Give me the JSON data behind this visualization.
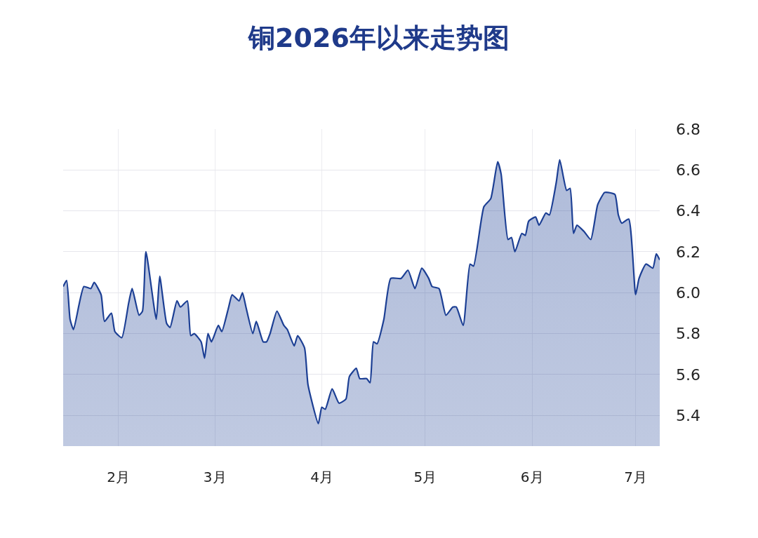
{
  "chart_data": {
    "type": "area",
    "title": "铜2026年以来走势图",
    "color": "#1c3f94",
    "grid": true,
    "xlim": [
      "2026-01-16",
      "2026-07-08"
    ],
    "xticks": [
      {
        "value": "2026-02-01",
        "label": "2月"
      },
      {
        "value": "2026-03-01",
        "label": "3月"
      },
      {
        "value": "2026-04-01",
        "label": "4月"
      },
      {
        "value": "2026-05-01",
        "label": "5月"
      },
      {
        "value": "2026-06-01",
        "label": "6月"
      },
      {
        "value": "2026-07-01",
        "label": "7月"
      }
    ],
    "ylim": [
      5.25,
      6.8
    ],
    "yticks": [
      {
        "value": 5.4,
        "label": "5.4"
      },
      {
        "value": 5.6,
        "label": "5.6"
      },
      {
        "value": 5.8,
        "label": "5.8"
      },
      {
        "value": 6.0,
        "label": "6.0"
      },
      {
        "value": 6.2,
        "label": "6.2"
      },
      {
        "value": 6.4,
        "label": "6.4"
      },
      {
        "value": 6.6,
        "label": "6.6"
      },
      {
        "value": 6.8,
        "label": "6.8"
      }
    ],
    "x": [
      "2026-01-16",
      "2026-01-17",
      "2026-01-18",
      "2026-01-19",
      "2026-01-22",
      "2026-01-24",
      "2026-01-25",
      "2026-01-27",
      "2026-01-28",
      "2026-01-30",
      "2026-01-31",
      "2026-02-02",
      "2026-02-04",
      "2026-02-05",
      "2026-02-07",
      "2026-02-08",
      "2026-02-09",
      "2026-02-12",
      "2026-02-13",
      "2026-02-15",
      "2026-02-16",
      "2026-02-18",
      "2026-02-19",
      "2026-02-21",
      "2026-02-22",
      "2026-02-23",
      "2026-02-25",
      "2026-02-26",
      "2026-02-27",
      "2026-02-28",
      "2026-03-02",
      "2026-03-03",
      "2026-03-05",
      "2026-03-06",
      "2026-03-08",
      "2026-03-09",
      "2026-03-10",
      "2026-03-12",
      "2026-03-13",
      "2026-03-15",
      "2026-03-16",
      "2026-03-17",
      "2026-03-19",
      "2026-03-21",
      "2026-03-22",
      "2026-03-24",
      "2026-03-25",
      "2026-03-27",
      "2026-03-28",
      "2026-03-31",
      "2026-04-01",
      "2026-04-02",
      "2026-04-04",
      "2026-04-06",
      "2026-04-08",
      "2026-04-09",
      "2026-04-11",
      "2026-04-12",
      "2026-04-14",
      "2026-04-15",
      "2026-04-16",
      "2026-04-17",
      "2026-04-19",
      "2026-04-21",
      "2026-04-24",
      "2026-04-26",
      "2026-04-28",
      "2026-04-30",
      "2026-05-02",
      "2026-05-03",
      "2026-05-05",
      "2026-05-07",
      "2026-05-09",
      "2026-05-10",
      "2026-05-12",
      "2026-05-14",
      "2026-05-15",
      "2026-05-18",
      "2026-05-20",
      "2026-05-22",
      "2026-05-23",
      "2026-05-25",
      "2026-05-26",
      "2026-05-27",
      "2026-05-29",
      "2026-05-30",
      "2026-05-31",
      "2026-06-02",
      "2026-06-03",
      "2026-06-05",
      "2026-06-06",
      "2026-06-08",
      "2026-06-09",
      "2026-06-11",
      "2026-06-12",
      "2026-06-13",
      "2026-06-14",
      "2026-06-16",
      "2026-06-18",
      "2026-06-20",
      "2026-06-22",
      "2026-06-23",
      "2026-06-25",
      "2026-06-26",
      "2026-06-27",
      "2026-06-29",
      "2026-07-01",
      "2026-07-02",
      "2026-07-04",
      "2026-07-06",
      "2026-07-07",
      "2026-07-08"
    ],
    "values": [
      6.03,
      6.06,
      5.87,
      5.82,
      6.03,
      6.02,
      6.05,
      5.99,
      5.86,
      5.9,
      5.81,
      5.78,
      5.95,
      6.02,
      5.89,
      5.91,
      6.2,
      5.87,
      6.08,
      5.85,
      5.83,
      5.96,
      5.93,
      5.96,
      5.79,
      5.8,
      5.76,
      5.68,
      5.8,
      5.76,
      5.84,
      5.81,
      5.93,
      5.99,
      5.96,
      6.0,
      5.93,
      5.8,
      5.86,
      5.76,
      5.76,
      5.8,
      5.91,
      5.84,
      5.82,
      5.74,
      5.79,
      5.73,
      5.55,
      5.36,
      5.44,
      5.43,
      5.53,
      5.46,
      5.48,
      5.59,
      5.63,
      5.58,
      5.58,
      5.56,
      5.76,
      5.75,
      5.87,
      6.07,
      6.07,
      6.11,
      6.02,
      6.12,
      6.07,
      6.03,
      6.02,
      5.89,
      5.93,
      5.93,
      5.84,
      6.14,
      6.13,
      6.42,
      6.46,
      6.64,
      6.58,
      6.26,
      6.27,
      6.2,
      6.29,
      6.28,
      6.35,
      6.37,
      6.33,
      6.39,
      6.38,
      6.54,
      6.65,
      6.5,
      6.51,
      6.29,
      6.33,
      6.3,
      6.26,
      6.43,
      6.49,
      6.49,
      6.48,
      6.38,
      6.34,
      6.36,
      5.99,
      6.07,
      6.14,
      6.12,
      6.19,
      6.16
    ]
  }
}
